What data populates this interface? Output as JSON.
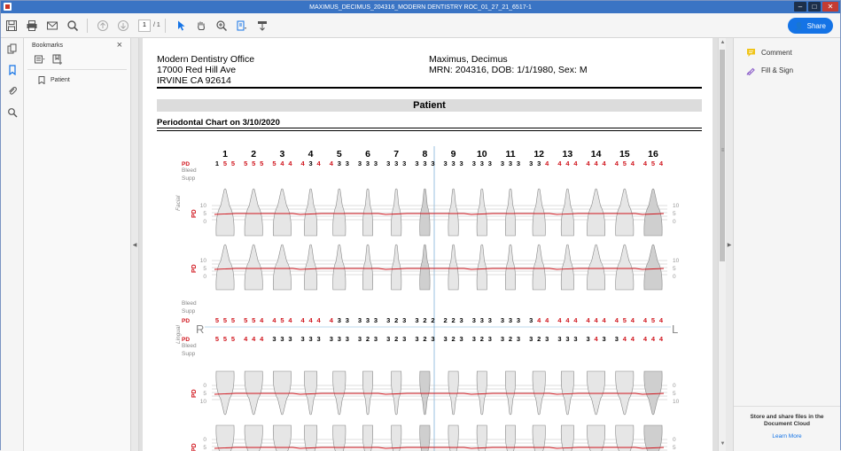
{
  "window": {
    "title": "MAXIMUS_DECIMUS_204316_MODERN DENTISTRY ROC_01_27_21_6517-1"
  },
  "toolbar": {
    "page_current": "1",
    "page_total": "/ 1",
    "share_label": "Share"
  },
  "bookmarks": {
    "title": "Bookmarks",
    "items": [
      "Patient"
    ]
  },
  "right_panel": {
    "comment_label": "Comment",
    "fill_sign_label": "Fill & Sign",
    "cloud_text_1": "Store and share files in the",
    "cloud_text_2": "Document Cloud",
    "learn_more": "Learn More"
  },
  "document": {
    "office_name": "Modern Dentistry Office",
    "office_address": "17000 Red Hill Ave",
    "office_city": "IRVINE CA 92614",
    "patient_name": "Maximus, Decimus",
    "patient_info": "MRN: 204316, DOB: 1/1/1980, Sex: M",
    "section_title": "Patient",
    "chart_title": "Periodontal Chart on 3/10/2020"
  },
  "perio_chart": {
    "tooth_numbers_upper": [
      "1",
      "2",
      "3",
      "4",
      "5",
      "6",
      "7",
      "8",
      "9",
      "10",
      "11",
      "12",
      "13",
      "14",
      "15",
      "16"
    ],
    "row_labels": {
      "pd": "PD",
      "bleed": "Bleed",
      "supp": "Supp",
      "facial": "Facial",
      "lingual": "Lingual",
      "right": "R",
      "left": "L"
    },
    "scale_upper": [
      "10",
      "5",
      "0"
    ],
    "scale_lower": [
      "0",
      "5",
      "10"
    ],
    "upper_facial_pd": [
      [
        "1",
        "5",
        "5"
      ],
      [
        "5",
        "5",
        "5"
      ],
      [
        "5",
        "4",
        "4"
      ],
      [
        "4",
        "3",
        "4"
      ],
      [
        "4",
        "3",
        "3"
      ],
      [
        "3",
        "3",
        "3"
      ],
      [
        "3",
        "3",
        "3"
      ],
      [
        "3",
        "3",
        "3"
      ],
      [
        "3",
        "3",
        "3"
      ],
      [
        "3",
        "3",
        "3"
      ],
      [
        "3",
        "3",
        "3"
      ],
      [
        "3",
        "3",
        "4"
      ],
      [
        "4",
        "4",
        "4"
      ],
      [
        "4",
        "4",
        "4"
      ],
      [
        "4",
        "5",
        "4"
      ],
      [
        "4",
        "5",
        "4"
      ]
    ],
    "upper_lingual_pd": [
      [
        "5",
        "5",
        "5"
      ],
      [
        "5",
        "5",
        "4"
      ],
      [
        "4",
        "5",
        "4"
      ],
      [
        "4",
        "4",
        "4"
      ],
      [
        "4",
        "3",
        "3"
      ],
      [
        "3",
        "3",
        "3"
      ],
      [
        "3",
        "2",
        "3"
      ],
      [
        "3",
        "2",
        "2"
      ],
      [
        "2",
        "2",
        "3"
      ],
      [
        "3",
        "3",
        "3"
      ],
      [
        "3",
        "3",
        "3"
      ],
      [
        "3",
        "4",
        "4"
      ],
      [
        "4",
        "4",
        "4"
      ],
      [
        "4",
        "4",
        "4"
      ],
      [
        "4",
        "5",
        "4"
      ],
      [
        "4",
        "5",
        "4"
      ]
    ],
    "lower_lingual_pd": [
      [
        "5",
        "5",
        "5"
      ],
      [
        "4",
        "4",
        "4"
      ],
      [
        "3",
        "3",
        "3"
      ],
      [
        "3",
        "3",
        "3"
      ],
      [
        "3",
        "3",
        "3"
      ],
      [
        "3",
        "2",
        "3"
      ],
      [
        "3",
        "2",
        "3"
      ],
      [
        "3",
        "2",
        "3"
      ],
      [
        "3",
        "2",
        "3"
      ],
      [
        "3",
        "2",
        "3"
      ],
      [
        "3",
        "2",
        "3"
      ],
      [
        "3",
        "2",
        "3"
      ],
      [
        "3",
        "3",
        "3"
      ],
      [
        "3",
        "4",
        "3"
      ],
      [
        "3",
        "4",
        "4"
      ],
      [
        "4",
        "4",
        "4"
      ]
    ],
    "colors": {
      "red": "#d0141c",
      "black": "#000000",
      "midline": "#7fb1d9"
    }
  }
}
